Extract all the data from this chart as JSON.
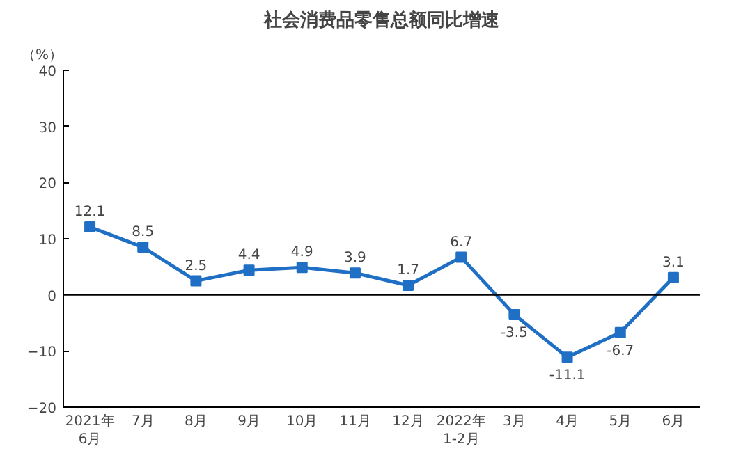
{
  "chart_data": {
    "type": "line",
    "title": "社会消费品零售总额同比增速",
    "ylabel": "（%）",
    "categories": [
      "2021年\n6月",
      "7月",
      "8月",
      "9月",
      "10月",
      "11月",
      "12月",
      "2022年\n1-2月",
      "3月",
      "4月",
      "5月",
      "6月"
    ],
    "series": [
      {
        "color": "#1f6fc5",
        "values": [
          12.1,
          8.5,
          2.5,
          4.4,
          4.9,
          3.9,
          1.7,
          6.7,
          -3.5,
          -11.1,
          -6.7,
          3.1
        ]
      }
    ],
    "ylim": [
      -20,
      40
    ],
    "yticks": [
      -20,
      -10,
      0,
      10,
      20,
      30,
      40
    ],
    "ref_lines": [
      {
        "axis": "y",
        "value": 0,
        "color": "#000000"
      }
    ],
    "data_labels": true,
    "grid": false,
    "marker": "square",
    "line_style": "solid"
  }
}
